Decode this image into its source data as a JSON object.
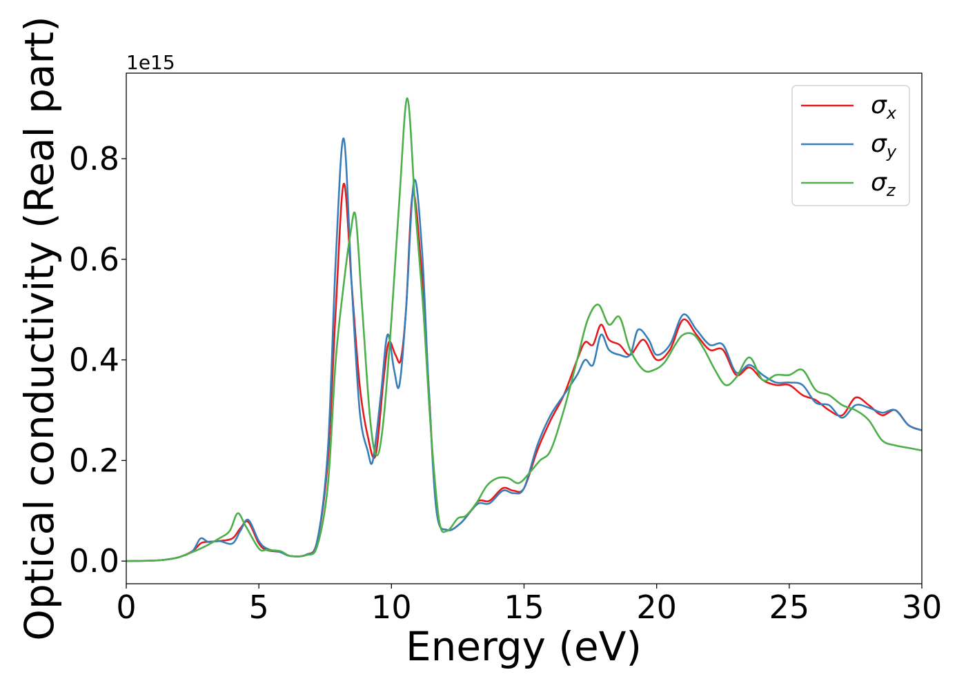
{
  "chart_data": {
    "type": "line",
    "xlabel": "Energy (eV)",
    "ylabel": "Optical conductivity (Real part)",
    "y_offset_text": "1e15",
    "xlim": [
      0,
      30
    ],
    "ylim": [
      -0.045,
      0.97
    ],
    "x_ticks": [
      "0",
      "5",
      "10",
      "15",
      "20",
      "25",
      "30"
    ],
    "y_ticks": [
      "0.0",
      "0.2",
      "0.4",
      "0.6",
      "0.8"
    ],
    "legend_position": "top-right",
    "grid": false,
    "series": [
      {
        "name": "σx",
        "symbol": "σ",
        "subscript": "x",
        "color": "#e41a1c",
        "points": [
          [
            0,
            0
          ],
          [
            1,
            0.001
          ],
          [
            1.5,
            0.003
          ],
          [
            2,
            0.008
          ],
          [
            2.5,
            0.02
          ],
          [
            2.8,
            0.035
          ],
          [
            3,
            0.038
          ],
          [
            3.5,
            0.04
          ],
          [
            4,
            0.045
          ],
          [
            4.3,
            0.065
          ],
          [
            4.6,
            0.078
          ],
          [
            5,
            0.035
          ],
          [
            5.3,
            0.022
          ],
          [
            5.8,
            0.018
          ],
          [
            6.2,
            0.01
          ],
          [
            6.8,
            0.013
          ],
          [
            7.2,
            0.04
          ],
          [
            7.6,
            0.2
          ],
          [
            7.9,
            0.5
          ],
          [
            8.2,
            0.75
          ],
          [
            8.5,
            0.55
          ],
          [
            8.8,
            0.35
          ],
          [
            9.1,
            0.25
          ],
          [
            9.4,
            0.21
          ],
          [
            9.7,
            0.36
          ],
          [
            9.9,
            0.435
          ],
          [
            10.15,
            0.41
          ],
          [
            10.35,
            0.4
          ],
          [
            10.55,
            0.5
          ],
          [
            10.8,
            0.73
          ],
          [
            11.1,
            0.6
          ],
          [
            11.4,
            0.35
          ],
          [
            11.7,
            0.1
          ],
          [
            12.1,
            0.062
          ],
          [
            12.6,
            0.075
          ],
          [
            13,
            0.1
          ],
          [
            13.3,
            0.12
          ],
          [
            13.7,
            0.12
          ],
          [
            14.2,
            0.145
          ],
          [
            14.6,
            0.14
          ],
          [
            15,
            0.145
          ],
          [
            15.5,
            0.22
          ],
          [
            16,
            0.28
          ],
          [
            16.5,
            0.33
          ],
          [
            17,
            0.4
          ],
          [
            17.3,
            0.435
          ],
          [
            17.6,
            0.43
          ],
          [
            17.9,
            0.47
          ],
          [
            18.2,
            0.44
          ],
          [
            18.6,
            0.43
          ],
          [
            19,
            0.41
          ],
          [
            19.5,
            0.44
          ],
          [
            20,
            0.4
          ],
          [
            20.5,
            0.42
          ],
          [
            21,
            0.48
          ],
          [
            21.5,
            0.45
          ],
          [
            22,
            0.42
          ],
          [
            22.5,
            0.42
          ],
          [
            23,
            0.37
          ],
          [
            23.5,
            0.385
          ],
          [
            24,
            0.36
          ],
          [
            24.5,
            0.35
          ],
          [
            25,
            0.35
          ],
          [
            25.5,
            0.33
          ],
          [
            26,
            0.32
          ],
          [
            26.5,
            0.3
          ],
          [
            27,
            0.29
          ],
          [
            27.5,
            0.325
          ],
          [
            28,
            0.31
          ],
          [
            28.5,
            0.29
          ],
          [
            29,
            0.3
          ],
          [
            29.5,
            0.27
          ],
          [
            30,
            0.26
          ]
        ]
      },
      {
        "name": "σy",
        "symbol": "σ",
        "subscript": "y",
        "color": "#377eb8",
        "points": [
          [
            0,
            0
          ],
          [
            1,
            0.001
          ],
          [
            1.5,
            0.003
          ],
          [
            2,
            0.008
          ],
          [
            2.5,
            0.02
          ],
          [
            2.8,
            0.045
          ],
          [
            3.1,
            0.038
          ],
          [
            3.5,
            0.04
          ],
          [
            4,
            0.035
          ],
          [
            4.3,
            0.06
          ],
          [
            4.6,
            0.082
          ],
          [
            5,
            0.04
          ],
          [
            5.3,
            0.025
          ],
          [
            5.8,
            0.018
          ],
          [
            6.2,
            0.01
          ],
          [
            6.8,
            0.013
          ],
          [
            7.2,
            0.04
          ],
          [
            7.6,
            0.22
          ],
          [
            7.9,
            0.6
          ],
          [
            8.2,
            0.84
          ],
          [
            8.5,
            0.55
          ],
          [
            8.8,
            0.3
          ],
          [
            9.1,
            0.22
          ],
          [
            9.3,
            0.2
          ],
          [
            9.6,
            0.33
          ],
          [
            9.85,
            0.45
          ],
          [
            10.1,
            0.38
          ],
          [
            10.3,
            0.35
          ],
          [
            10.55,
            0.5
          ],
          [
            10.85,
            0.755
          ],
          [
            11.15,
            0.62
          ],
          [
            11.4,
            0.35
          ],
          [
            11.7,
            0.1
          ],
          [
            12.1,
            0.062
          ],
          [
            12.6,
            0.075
          ],
          [
            13,
            0.1
          ],
          [
            13.3,
            0.115
          ],
          [
            13.7,
            0.115
          ],
          [
            14.2,
            0.14
          ],
          [
            14.6,
            0.135
          ],
          [
            15,
            0.145
          ],
          [
            15.5,
            0.23
          ],
          [
            16,
            0.29
          ],
          [
            16.5,
            0.33
          ],
          [
            17,
            0.37
          ],
          [
            17.3,
            0.4
          ],
          [
            17.6,
            0.39
          ],
          [
            17.9,
            0.45
          ],
          [
            18.2,
            0.42
          ],
          [
            18.6,
            0.41
          ],
          [
            19,
            0.41
          ],
          [
            19.3,
            0.46
          ],
          [
            19.7,
            0.44
          ],
          [
            20,
            0.41
          ],
          [
            20.5,
            0.43
          ],
          [
            21,
            0.49
          ],
          [
            21.5,
            0.46
          ],
          [
            22,
            0.43
          ],
          [
            22.5,
            0.43
          ],
          [
            23,
            0.375
          ],
          [
            23.5,
            0.39
          ],
          [
            24,
            0.37
          ],
          [
            24.5,
            0.355
          ],
          [
            25,
            0.355
          ],
          [
            25.5,
            0.35
          ],
          [
            26,
            0.315
          ],
          [
            26.5,
            0.31
          ],
          [
            27,
            0.285
          ],
          [
            27.5,
            0.31
          ],
          [
            28,
            0.305
          ],
          [
            28.5,
            0.295
          ],
          [
            29,
            0.3
          ],
          [
            29.5,
            0.27
          ],
          [
            30,
            0.26
          ]
        ]
      },
      {
        "name": "σz",
        "symbol": "σ",
        "subscript": "z",
        "color": "#4daf4a",
        "points": [
          [
            0,
            0
          ],
          [
            1,
            0.001
          ],
          [
            1.5,
            0.003
          ],
          [
            2,
            0.008
          ],
          [
            2.5,
            0.018
          ],
          [
            3,
            0.03
          ],
          [
            3.5,
            0.045
          ],
          [
            3.9,
            0.06
          ],
          [
            4.2,
            0.095
          ],
          [
            4.5,
            0.07
          ],
          [
            5,
            0.025
          ],
          [
            5.3,
            0.022
          ],
          [
            5.8,
            0.02
          ],
          [
            6.2,
            0.01
          ],
          [
            6.8,
            0.012
          ],
          [
            7.2,
            0.03
          ],
          [
            7.6,
            0.15
          ],
          [
            7.9,
            0.4
          ],
          [
            8.2,
            0.55
          ],
          [
            8.45,
            0.65
          ],
          [
            8.65,
            0.685
          ],
          [
            8.9,
            0.5
          ],
          [
            9.2,
            0.28
          ],
          [
            9.45,
            0.21
          ],
          [
            9.7,
            0.28
          ],
          [
            10,
            0.48
          ],
          [
            10.3,
            0.72
          ],
          [
            10.6,
            0.92
          ],
          [
            10.9,
            0.7
          ],
          [
            11.2,
            0.5
          ],
          [
            11.5,
            0.25
          ],
          [
            11.8,
            0.08
          ],
          [
            12.1,
            0.06
          ],
          [
            12.5,
            0.085
          ],
          [
            12.8,
            0.09
          ],
          [
            13.2,
            0.115
          ],
          [
            13.6,
            0.15
          ],
          [
            14,
            0.165
          ],
          [
            14.4,
            0.165
          ],
          [
            14.8,
            0.155
          ],
          [
            15.2,
            0.175
          ],
          [
            15.6,
            0.2
          ],
          [
            16,
            0.22
          ],
          [
            16.5,
            0.3
          ],
          [
            17,
            0.4
          ],
          [
            17.4,
            0.48
          ],
          [
            17.8,
            0.51
          ],
          [
            18.2,
            0.47
          ],
          [
            18.6,
            0.485
          ],
          [
            19,
            0.42
          ],
          [
            19.5,
            0.38
          ],
          [
            19.9,
            0.38
          ],
          [
            20.3,
            0.395
          ],
          [
            20.7,
            0.43
          ],
          [
            21,
            0.45
          ],
          [
            21.4,
            0.45
          ],
          [
            21.8,
            0.42
          ],
          [
            22.2,
            0.38
          ],
          [
            22.6,
            0.35
          ],
          [
            23,
            0.365
          ],
          [
            23.5,
            0.405
          ],
          [
            24,
            0.36
          ],
          [
            24.5,
            0.37
          ],
          [
            25,
            0.37
          ],
          [
            25.5,
            0.38
          ],
          [
            26,
            0.34
          ],
          [
            26.5,
            0.33
          ],
          [
            27,
            0.31
          ],
          [
            27.5,
            0.3
          ],
          [
            28,
            0.28
          ],
          [
            28.5,
            0.24
          ],
          [
            29,
            0.23
          ],
          [
            29.5,
            0.225
          ],
          [
            30,
            0.22
          ]
        ]
      }
    ]
  }
}
